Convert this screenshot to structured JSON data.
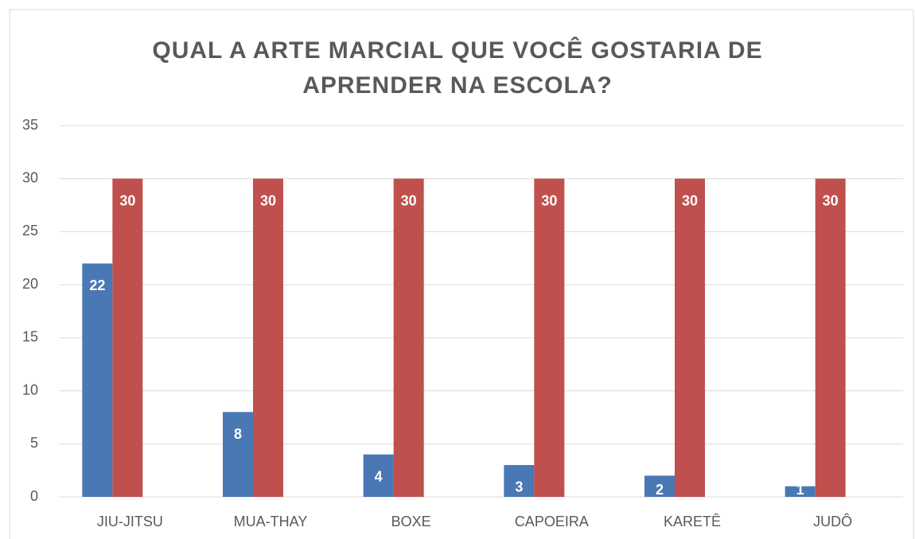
{
  "chart_data": {
    "type": "bar",
    "title": "QUAL A ARTE MARCIAL QUE VOCÊ GOSTARIA DE APRENDER NA ESCOLA?",
    "categories": [
      "JIU-JITSU",
      "MUA-THAY",
      "BOXE",
      "CAPOEIRA",
      "KARETÊ",
      "JUDÔ"
    ],
    "series": [
      {
        "color": "#4a78b5",
        "values": [
          22,
          8,
          4,
          3,
          2,
          1
        ]
      },
      {
        "color": "#c0504d",
        "values": [
          30,
          30,
          30,
          30,
          30,
          30
        ]
      }
    ],
    "ylim": [
      0,
      35
    ],
    "yticks": [
      0,
      5,
      10,
      15,
      20,
      25,
      30,
      35
    ],
    "grid": true,
    "data_labels": true
  }
}
